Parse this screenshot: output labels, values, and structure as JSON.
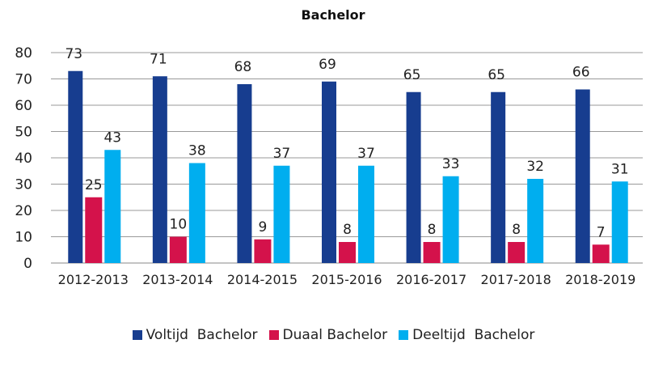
{
  "chart_data": {
    "type": "bar",
    "title": "Bachelor",
    "xlabel": "",
    "ylabel": "",
    "ylim": [
      0,
      80
    ],
    "yticks": [
      0,
      10,
      20,
      30,
      40,
      50,
      60,
      70,
      80
    ],
    "grid": true,
    "legend_position": "bottom",
    "categories": [
      "2012-2013",
      "2013-2014",
      "2014-2015",
      "2015-2016",
      "2016-2017",
      "2017-2018",
      "2018-2019"
    ],
    "series": [
      {
        "name": "Voltijd  Bachelor",
        "color": "#173d8f",
        "values": [
          73,
          71,
          68,
          69,
          65,
          65,
          66
        ]
      },
      {
        "name": "Duaal Bachelor",
        "color": "#d4124b",
        "values": [
          25,
          10,
          9,
          8,
          8,
          8,
          7
        ]
      },
      {
        "name": "Deeltijd  Bachelor",
        "color": "#00aeef",
        "values": [
          43,
          38,
          37,
          37,
          33,
          32,
          31
        ]
      }
    ]
  }
}
